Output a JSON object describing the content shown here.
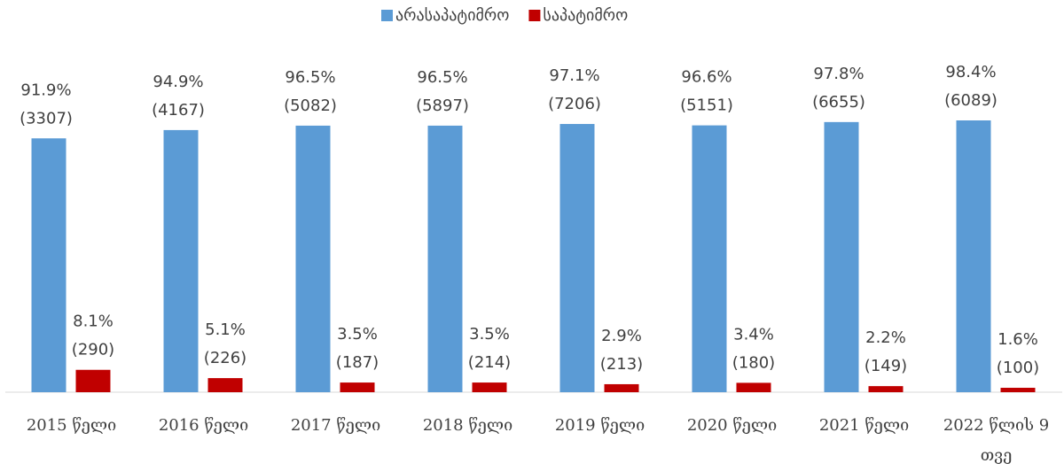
{
  "chart_data": {
    "type": "bar",
    "categories": [
      "2015 წელი",
      "2016 წელი",
      "2017 წელი",
      "2018 წელი",
      "2019 წელი",
      "2020 წელი",
      "2021 წელი",
      "2022 წლის 9 თვე"
    ],
    "series": [
      {
        "name": "არასაპატიმრო",
        "color": "#5b9bd5",
        "values": [
          91.9,
          94.9,
          96.5,
          96.5,
          97.1,
          96.6,
          97.8,
          98.4
        ],
        "value_labels": [
          "91.9%",
          "94.9%",
          "96.5%",
          "96.5%",
          "97.1%",
          "96.6%",
          "97.8%",
          "98.4%"
        ],
        "count_labels": [
          "(3307)",
          "(4167)",
          "(5082)",
          "(5897)",
          "(7206)",
          "(5151)",
          "(6655)",
          "(6089)"
        ]
      },
      {
        "name": "საპატიმრო",
        "color": "#c00000",
        "values": [
          8.1,
          5.1,
          3.5,
          3.5,
          2.9,
          3.4,
          2.2,
          1.6
        ],
        "value_labels": [
          "8.1%",
          "5.1%",
          "3.5%",
          "3.5%",
          "2.9%",
          "3.4%",
          "2.2%",
          "1.6%"
        ],
        "count_labels": [
          "(290)",
          "(226)",
          "(187)",
          "(214)",
          "(213)",
          "(180)",
          "(149)",
          "(100)"
        ]
      }
    ],
    "ylim": [
      0,
      100
    ],
    "legend": "top"
  }
}
